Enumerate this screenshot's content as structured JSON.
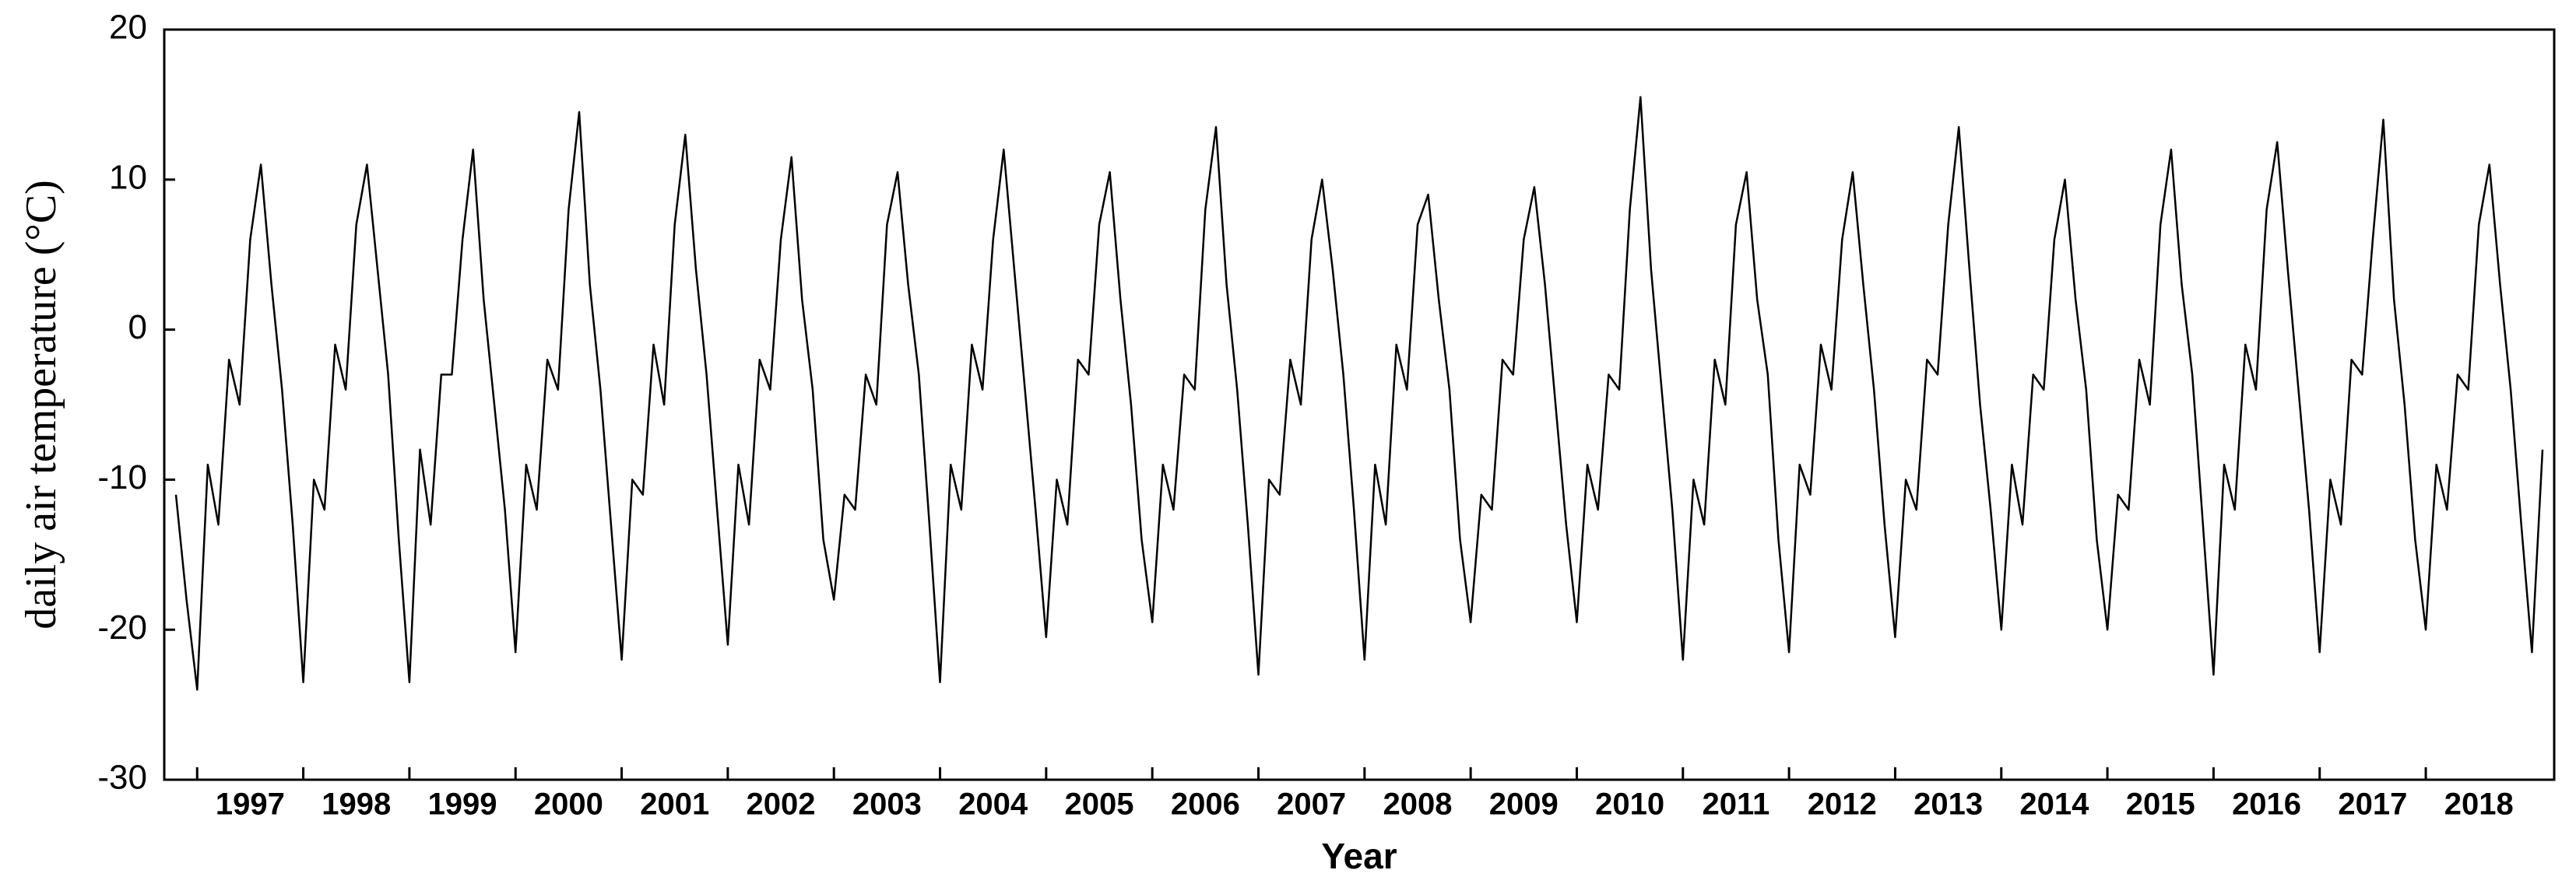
{
  "chart_data": {
    "type": "line",
    "xlabel": "Year",
    "ylabel": "daily air temperature (°C)",
    "color": "#000000",
    "xlim": [
      1996.69,
      2019.21
    ],
    "ylim": [
      -30,
      20
    ],
    "yticks": [
      -30,
      -20,
      -10,
      0,
      10,
      20
    ],
    "xticks": [
      1997,
      1998,
      1999,
      2000,
      2001,
      2002,
      2003,
      2004,
      2005,
      2006,
      2007,
      2008,
      2009,
      2010,
      2011,
      2012,
      2013,
      2014,
      2015,
      2016,
      2017,
      2018
    ],
    "x": [
      1996.8,
      1996.9,
      1997,
      1997.1,
      1997.2,
      1997.3,
      1997.4,
      1997.5,
      1997.6,
      1997.7,
      1997.8,
      1997.9,
      1998,
      1998.1,
      1998.2,
      1998.3,
      1998.4,
      1998.5,
      1998.6,
      1998.7,
      1998.8,
      1998.9,
      1999,
      1999.1,
      1999.2,
      1999.3,
      1999.4,
      1999.5,
      1999.6,
      1999.7,
      1999.8,
      1999.9,
      2000,
      2000.1,
      2000.2,
      2000.3,
      2000.4,
      2000.5,
      2000.6,
      2000.7,
      2000.8,
      2000.9,
      2001,
      2001.1,
      2001.2,
      2001.3,
      2001.4,
      2001.5,
      2001.6,
      2001.7,
      2001.8,
      2001.9,
      2002,
      2002.1,
      2002.2,
      2002.3,
      2002.4,
      2002.5,
      2002.6,
      2002.7,
      2002.8,
      2002.9,
      2003,
      2003.1,
      2003.2,
      2003.3,
      2003.4,
      2003.5,
      2003.6,
      2003.7,
      2003.8,
      2003.9,
      2004,
      2004.1,
      2004.2,
      2004.3,
      2004.4,
      2004.5,
      2004.6,
      2004.7,
      2004.8,
      2004.9,
      2005,
      2005.1,
      2005.2,
      2005.3,
      2005.4,
      2005.5,
      2005.6,
      2005.7,
      2005.8,
      2005.9,
      2006,
      2006.1,
      2006.2,
      2006.3,
      2006.4,
      2006.5,
      2006.6,
      2006.7,
      2006.8,
      2006.9,
      2007,
      2007.1,
      2007.2,
      2007.3,
      2007.4,
      2007.5,
      2007.6,
      2007.7,
      2007.8,
      2007.9,
      2008,
      2008.1,
      2008.2,
      2008.3,
      2008.4,
      2008.5,
      2008.6,
      2008.7,
      2008.8,
      2008.9,
      2009,
      2009.1,
      2009.2,
      2009.3,
      2009.4,
      2009.5,
      2009.6,
      2009.7,
      2009.8,
      2009.9,
      2010,
      2010.1,
      2010.2,
      2010.3,
      2010.4,
      2010.5,
      2010.6,
      2010.7,
      2010.8,
      2010.9,
      2011,
      2011.1,
      2011.2,
      2011.3,
      2011.4,
      2011.5,
      2011.6,
      2011.7,
      2011.8,
      2011.9,
      2012,
      2012.1,
      2012.2,
      2012.3,
      2012.4,
      2012.5,
      2012.6,
      2012.7,
      2012.8,
      2012.9,
      2013,
      2013.1,
      2013.2,
      2013.3,
      2013.4,
      2013.5,
      2013.6,
      2013.7,
      2013.8,
      2013.9,
      2014,
      2014.1,
      2014.2,
      2014.3,
      2014.4,
      2014.5,
      2014.6,
      2014.7,
      2014.8,
      2014.9,
      2015,
      2015.1,
      2015.2,
      2015.3,
      2015.4,
      2015.5,
      2015.6,
      2015.7,
      2015.8,
      2015.9,
      2016,
      2016.1,
      2016.2,
      2016.3,
      2016.4,
      2016.5,
      2016.6,
      2016.7,
      2016.8,
      2016.9,
      2017,
      2017.1,
      2017.2,
      2017.3,
      2017.4,
      2017.5,
      2017.6,
      2017.7,
      2017.8,
      2017.9,
      2018,
      2018.1,
      2018.2,
      2018.3,
      2018.4,
      2018.5,
      2018.6,
      2018.7,
      2018.8,
      2018.9,
      2019,
      2019.1
    ],
    "values": [
      -11,
      -18,
      -24,
      -9,
      -13,
      -2,
      -5,
      6,
      11,
      3,
      -4,
      -13,
      -23.5,
      -10,
      -12,
      -1,
      -4,
      7,
      11,
      4,
      -3,
      -14,
      -23.5,
      -8,
      -13,
      -3,
      -3,
      6,
      12,
      2,
      -5,
      -12,
      -21.5,
      -9,
      -12,
      -2,
      -4,
      8,
      14.5,
      3,
      -4,
      -13,
      -22,
      -10,
      -11,
      -1,
      -5,
      7,
      13,
      4,
      -3,
      -12,
      -21,
      -9,
      -13,
      -2,
      -4,
      6,
      11.5,
      2,
      -4,
      -14,
      -18,
      -11,
      -12,
      -3,
      -5,
      7,
      10.5,
      3,
      -3,
      -13,
      -23.5,
      -9,
      -12,
      -1,
      -4,
      6,
      12,
      4,
      -4,
      -12,
      -20.5,
      -10,
      -13,
      -2,
      -3,
      7,
      10.5,
      2,
      -5,
      -14,
      -19.5,
      -9,
      -12,
      -3,
      -4,
      8,
      13.5,
      3,
      -4,
      -13,
      -23,
      -10,
      -11,
      -2,
      -5,
      6,
      10,
      4,
      -3,
      -12,
      -22,
      -9,
      -13,
      -1,
      -4,
      7,
      9,
      2,
      -4,
      -14,
      -19.5,
      -11,
      -12,
      -2,
      -3,
      6,
      9.5,
      3,
      -5,
      -13,
      -19.5,
      -9,
      -12,
      -3,
      -4,
      8,
      15.5,
      4,
      -4,
      -12,
      -22,
      -10,
      -13,
      -2,
      -5,
      7,
      10.5,
      2,
      -3,
      -14,
      -21.5,
      -9,
      -11,
      -1,
      -4,
      6,
      10.5,
      3,
      -4,
      -13,
      -20.5,
      -10,
      -12,
      -2,
      -3,
      7,
      13.5,
      4,
      -5,
      -12,
      -20,
      -9,
      -13,
      -3,
      -4,
      6,
      10,
      2,
      -4,
      -14,
      -20,
      -11,
      -12,
      -2,
      -5,
      7,
      12,
      3,
      -3,
      -13,
      -23,
      -9,
      -12,
      -1,
      -4,
      8,
      12.5,
      4,
      -4,
      -12,
      -21.5,
      -10,
      -13,
      -2,
      -3,
      6,
      14,
      2,
      -5,
      -14,
      -20,
      -9,
      -12,
      -3,
      -4,
      7,
      11,
      3,
      -4,
      -13,
      -21.5,
      -8
    ]
  }
}
